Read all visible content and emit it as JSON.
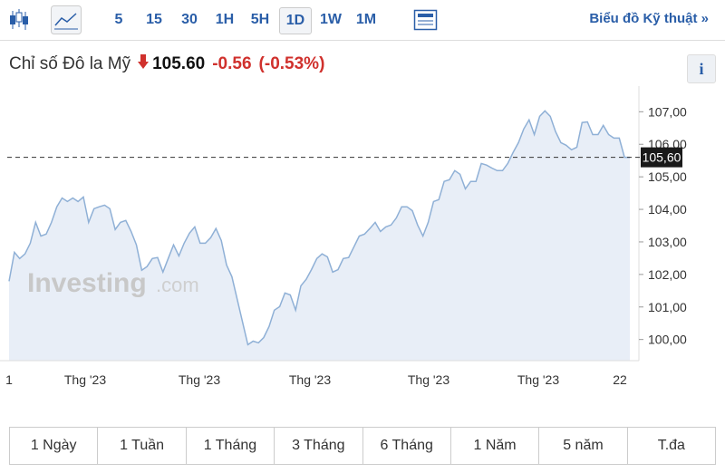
{
  "toolbar": {
    "intervals": [
      "5",
      "15",
      "30",
      "1H",
      "5H",
      "1D",
      "1W",
      "1M"
    ],
    "selected_interval": "1D",
    "technical_link": "Biểu đồ Kỹ thuật »"
  },
  "header": {
    "name": "Chỉ số Đô la Mỹ",
    "price": "105.60",
    "change": "-0.56",
    "change_percent": "(-0.53%)",
    "info": "i"
  },
  "watermark": {
    "brand": "Investing",
    "suffix": ".com"
  },
  "chart_data": {
    "type": "area",
    "color": "#8fb0d6",
    "fill": "#e8eef7",
    "xtick_labels": [
      "1",
      "Thg '23",
      "Thg '23",
      "Thg '23",
      "Thg '23",
      "Thg '23",
      "22"
    ],
    "values": [
      101.79,
      102.68,
      102.49,
      102.63,
      102.96,
      103.6,
      103.18,
      103.24,
      103.6,
      104.08,
      104.35,
      104.24,
      104.35,
      104.24,
      104.38,
      103.6,
      104.02,
      104.08,
      104.13,
      104.02,
      103.38,
      103.6,
      103.66,
      103.32,
      102.91,
      102.13,
      102.24,
      102.49,
      102.52,
      102.07,
      102.49,
      102.91,
      102.57,
      102.96,
      103.27,
      103.46,
      102.96,
      102.96,
      103.13,
      103.41,
      103.04,
      102.29,
      101.93,
      101.23,
      100.54,
      99.84,
      99.95,
      99.9,
      100.06,
      100.4,
      100.9,
      101.01,
      101.43,
      101.37,
      100.9,
      101.65,
      101.85,
      102.15,
      102.49,
      102.63,
      102.54,
      102.07,
      102.15,
      102.49,
      102.52,
      102.85,
      103.18,
      103.24,
      103.41,
      103.6,
      103.32,
      103.46,
      103.52,
      103.74,
      104.08,
      104.08,
      103.96,
      103.52,
      103.18,
      103.6,
      104.24,
      104.3,
      104.86,
      104.91,
      105.19,
      105.08,
      104.63,
      104.86,
      104.86,
      105.41,
      105.36,
      105.27,
      105.19,
      105.19,
      105.41,
      105.75,
      106.05,
      106.47,
      106.75,
      106.3,
      106.86,
      107.03,
      106.86,
      106.39,
      106.05,
      105.97,
      105.83,
      105.91,
      106.67,
      106.69,
      106.3,
      106.3,
      106.58,
      106.3,
      106.19,
      106.19,
      105.6,
      105.6
    ],
    "ylim": [
      99.35,
      107.65
    ],
    "yticks": [
      {
        "value": 100,
        "label": "100,00"
      },
      {
        "value": 101,
        "label": "101,00"
      },
      {
        "value": 102,
        "label": "102,00"
      },
      {
        "value": 103,
        "label": "103,00"
      },
      {
        "value": 104,
        "label": "104,00"
      },
      {
        "value": 105,
        "label": "105,00"
      },
      {
        "value": 106,
        "label": "106,00"
      },
      {
        "value": 107,
        "label": "107,00"
      }
    ],
    "current": {
      "value": 105.6,
      "label": "105,60"
    }
  },
  "range_tabs": [
    "1 Ngày",
    "1 Tuần",
    "1 Tháng",
    "3 Tháng",
    "6 Tháng",
    "1 Năm",
    "5 năm",
    "T.đa"
  ]
}
